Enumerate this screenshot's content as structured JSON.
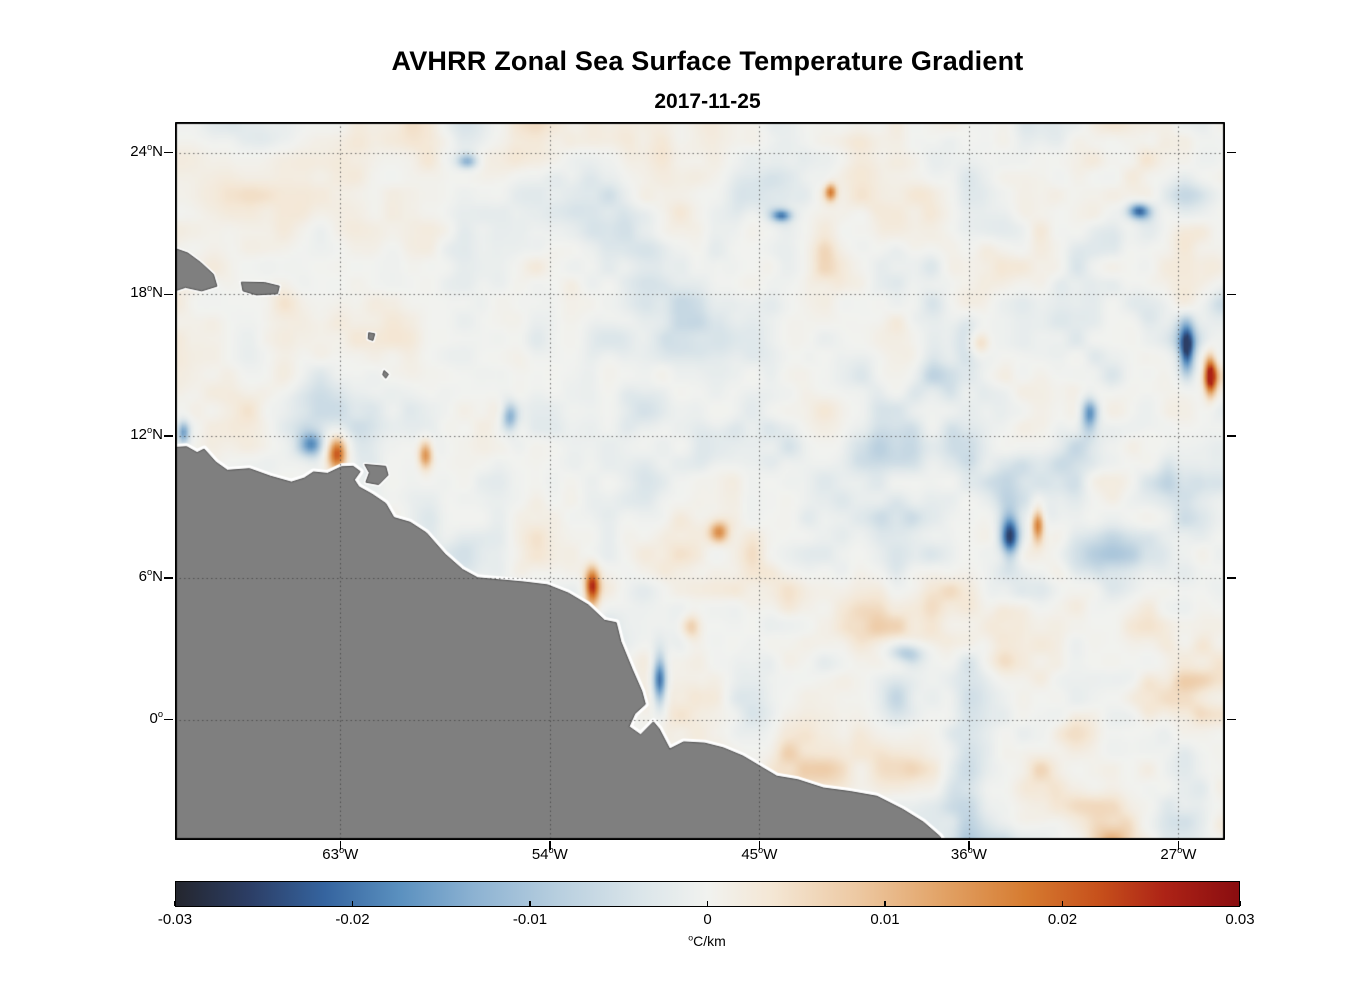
{
  "title": "AVHRR Zonal Sea Surface Temperature Gradient",
  "subtitle": "2017-11-25",
  "chart_data": {
    "type": "heatmap",
    "title": "AVHRR Zonal Sea Surface Temperature Gradient",
    "subtitle": "2017-11-25",
    "variable": "zonal sea surface temperature gradient",
    "deg_symbol": "o",
    "lon_range": [
      -70.1,
      -25.0
    ],
    "lat_range": [
      -5.1,
      25.3
    ],
    "xticks": [
      {
        "deg": "63",
        "hemi": "W",
        "lon": -63
      },
      {
        "deg": "54",
        "hemi": "W",
        "lon": -54
      },
      {
        "deg": "45",
        "hemi": "W",
        "lon": -45
      },
      {
        "deg": "36",
        "hemi": "W",
        "lon": -36
      },
      {
        "deg": "27",
        "hemi": "W",
        "lon": -27
      }
    ],
    "yticks": [
      {
        "deg": "24",
        "hemi": "N",
        "lat": 24
      },
      {
        "deg": "18",
        "hemi": "N",
        "lat": 18
      },
      {
        "deg": "12",
        "hemi": "N",
        "lat": 12
      },
      {
        "deg": "6",
        "hemi": "N",
        "lat": 6
      },
      {
        "deg": "0",
        "hemi": "",
        "lat": 0
      }
    ],
    "grid": {
      "on": true,
      "style": "dotted",
      "color": "#3c3c3c"
    },
    "frame_color": "#000000",
    "land_color": "#7f7f7f",
    "land_edge_color": "#4a4a4a",
    "coast_fringe_color": "#ffffff",
    "colorbar": {
      "orientation": "horizontal",
      "min": -0.03,
      "max": 0.03,
      "unit_sup": "o",
      "unit_text": "C/km",
      "ticks": [
        {
          "label": "-0.03",
          "value": -0.03
        },
        {
          "label": "-0.02",
          "value": -0.02
        },
        {
          "label": "-0.01",
          "value": -0.01
        },
        {
          "label": "0",
          "value": 0
        },
        {
          "label": "0.01",
          "value": 0.01
        },
        {
          "label": "0.02",
          "value": 0.02
        },
        {
          "label": "0.03",
          "value": 0.03
        }
      ]
    },
    "colormap": [
      {
        "pos": 0.0,
        "color": "#24262e"
      },
      {
        "pos": 0.07,
        "color": "#2c3e66"
      },
      {
        "pos": 0.14,
        "color": "#35649f"
      },
      {
        "pos": 0.21,
        "color": "#5a90bf"
      },
      {
        "pos": 0.28,
        "color": "#8cb2d2"
      },
      {
        "pos": 0.36,
        "color": "#b8cfdf"
      },
      {
        "pos": 0.44,
        "color": "#dce6ea"
      },
      {
        "pos": 0.5,
        "color": "#f1f2ef"
      },
      {
        "pos": 0.56,
        "color": "#f4e7d5"
      },
      {
        "pos": 0.64,
        "color": "#edc9a3"
      },
      {
        "pos": 0.72,
        "color": "#e2a367"
      },
      {
        "pos": 0.8,
        "color": "#d67b30"
      },
      {
        "pos": 0.87,
        "color": "#c64f1b"
      },
      {
        "pos": 0.93,
        "color": "#ad2316"
      },
      {
        "pos": 1.0,
        "color": "#8a0d10"
      }
    ],
    "noise": {
      "seed": 42,
      "west_factor": 0.72,
      "east_boost": 0.5,
      "octaves": [
        {
          "cell": 48,
          "amp": 0.22
        },
        {
          "cell": 24,
          "amp": 0.42
        },
        {
          "cell": 12,
          "amp": 0.3
        },
        {
          "cell": 6,
          "amp": 0.16
        }
      ]
    },
    "features": [
      {
        "lon": -63.2,
        "lat": 11.35,
        "rx": 0.5,
        "ry": 0.85,
        "v": 0.95
      },
      {
        "lon": -64.3,
        "lat": 11.7,
        "rx": 0.6,
        "ry": 0.55,
        "v": -0.55
      },
      {
        "lon": -59.4,
        "lat": 11.3,
        "rx": 0.35,
        "ry": 0.7,
        "v": 0.7
      },
      {
        "lon": -52.25,
        "lat": 5.7,
        "rx": 0.35,
        "ry": 0.9,
        "v": 0.85
      },
      {
        "lon": -49.35,
        "lat": 1.7,
        "rx": 0.35,
        "ry": 1.3,
        "v": -0.9
      },
      {
        "lon": -38.8,
        "lat": 2.9,
        "rx": 0.9,
        "ry": 0.5,
        "v": -0.5
      },
      {
        "lon": -34.3,
        "lat": 7.8,
        "rx": 0.45,
        "ry": 1.0,
        "v": -0.85
      },
      {
        "lon": -33.1,
        "lat": 8.3,
        "rx": 0.3,
        "ry": 0.8,
        "v": 0.75
      },
      {
        "lon": -25.7,
        "lat": 14.6,
        "rx": 0.3,
        "ry": 0.95,
        "v": 0.9
      },
      {
        "lon": -26.7,
        "lat": 15.7,
        "rx": 0.35,
        "ry": 1.1,
        "v": -0.7
      },
      {
        "lon": -28.8,
        "lat": 21.6,
        "rx": 0.55,
        "ry": 0.4,
        "v": -0.8
      },
      {
        "lon": -57.6,
        "lat": 23.7,
        "rx": 0.5,
        "ry": 0.35,
        "v": -0.5
      },
      {
        "lon": -69.8,
        "lat": 12.2,
        "rx": 0.3,
        "ry": 0.55,
        "v": -0.6
      },
      {
        "lon": -46.8,
        "lat": 8.0,
        "rx": 0.45,
        "ry": 0.5,
        "v": 0.5
      },
      {
        "lon": -55.8,
        "lat": 12.9,
        "rx": 0.4,
        "ry": 0.7,
        "v": -0.6
      },
      {
        "lon": -42.0,
        "lat": 22.4,
        "rx": 0.28,
        "ry": 0.42,
        "v": 0.6
      },
      {
        "lon": -44.1,
        "lat": 21.4,
        "rx": 0.5,
        "ry": 0.3,
        "v": -0.65
      },
      {
        "lon": -30.9,
        "lat": 13.0,
        "rx": 0.4,
        "ry": 0.8,
        "v": -0.6
      },
      {
        "lon": -35.6,
        "lat": 16.0,
        "rx": 0.5,
        "ry": 0.6,
        "v": 0.45
      },
      {
        "lon": -48.0,
        "lat": 4.0,
        "rx": 0.5,
        "ry": 0.6,
        "v": 0.45
      }
    ],
    "land": {
      "mainland": [
        [
          -70.4,
          11.5
        ],
        [
          -69.6,
          11.55
        ],
        [
          -69.15,
          11.3
        ],
        [
          -68.85,
          11.45
        ],
        [
          -68.35,
          10.9
        ],
        [
          -67.85,
          10.55
        ],
        [
          -66.9,
          10.62
        ],
        [
          -66.0,
          10.3
        ],
        [
          -65.1,
          10.05
        ],
        [
          -64.55,
          10.22
        ],
        [
          -64.15,
          10.48
        ],
        [
          -63.55,
          10.42
        ],
        [
          -62.95,
          10.7
        ],
        [
          -62.45,
          10.72
        ],
        [
          -62.15,
          10.5
        ],
        [
          -62.4,
          10.15
        ],
        [
          -62.2,
          9.85
        ],
        [
          -61.65,
          9.55
        ],
        [
          -61.05,
          9.15
        ],
        [
          -60.7,
          8.55
        ],
        [
          -60.0,
          8.35
        ],
        [
          -59.3,
          7.9
        ],
        [
          -58.5,
          7.0
        ],
        [
          -57.75,
          6.35
        ],
        [
          -57.1,
          6.0
        ],
        [
          -56.2,
          5.92
        ],
        [
          -55.1,
          5.82
        ],
        [
          -54.1,
          5.7
        ],
        [
          -53.2,
          5.35
        ],
        [
          -52.35,
          4.85
        ],
        [
          -51.65,
          4.2
        ],
        [
          -51.15,
          4.1
        ],
        [
          -50.95,
          3.3
        ],
        [
          -50.45,
          2.1
        ],
        [
          -50.05,
          1.2
        ],
        [
          -49.9,
          0.65
        ],
        [
          -50.35,
          0.25
        ],
        [
          -50.6,
          -0.3
        ],
        [
          -50.1,
          -0.65
        ],
        [
          -49.55,
          -0.1
        ],
        [
          -49.3,
          -0.4
        ],
        [
          -48.85,
          -1.25
        ],
        [
          -48.25,
          -0.95
        ],
        [
          -47.35,
          -1.0
        ],
        [
          -46.55,
          -1.2
        ],
        [
          -45.7,
          -1.55
        ],
        [
          -44.85,
          -2.05
        ],
        [
          -44.25,
          -2.4
        ],
        [
          -43.35,
          -2.55
        ],
        [
          -42.25,
          -2.9
        ],
        [
          -41.1,
          -3.05
        ],
        [
          -39.95,
          -3.25
        ],
        [
          -38.85,
          -3.8
        ],
        [
          -37.95,
          -4.35
        ],
        [
          -37.25,
          -4.95
        ],
        [
          -36.85,
          -5.6
        ],
        [
          -36.7,
          -6.8
        ],
        [
          -71.0,
          -6.8
        ]
      ],
      "islands": [
        {
          "name": "hispaniola-east",
          "poly": [
            [
              -70.4,
              20.05
            ],
            [
              -69.55,
              19.75
            ],
            [
              -69.0,
              19.35
            ],
            [
              -68.45,
              18.85
            ],
            [
              -68.3,
              18.35
            ],
            [
              -68.95,
              18.15
            ],
            [
              -69.65,
              18.3
            ],
            [
              -70.4,
              18.05
            ]
          ]
        },
        {
          "name": "puerto-rico",
          "poly": [
            [
              -67.25,
              18.52
            ],
            [
              -66.25,
              18.5
            ],
            [
              -65.62,
              18.35
            ],
            [
              -65.7,
              18.03
            ],
            [
              -66.6,
              17.98
            ],
            [
              -67.18,
              18.15
            ]
          ]
        },
        {
          "name": "guadeloupe",
          "poly": [
            [
              -61.78,
              16.38
            ],
            [
              -61.52,
              16.33
            ],
            [
              -61.6,
              16.05
            ],
            [
              -61.8,
              16.12
            ]
          ]
        },
        {
          "name": "martinique",
          "poly": [
            [
              -61.12,
              14.78
            ],
            [
              -60.93,
              14.62
            ],
            [
              -61.05,
              14.45
            ],
            [
              -61.18,
              14.6
            ]
          ]
        },
        {
          "name": "trinidad",
          "poly": [
            [
              -61.95,
              10.8
            ],
            [
              -61.05,
              10.72
            ],
            [
              -60.95,
              10.35
            ],
            [
              -61.35,
              9.95
            ],
            [
              -61.9,
              10.05
            ],
            [
              -61.75,
              10.45
            ]
          ]
        }
      ]
    }
  }
}
